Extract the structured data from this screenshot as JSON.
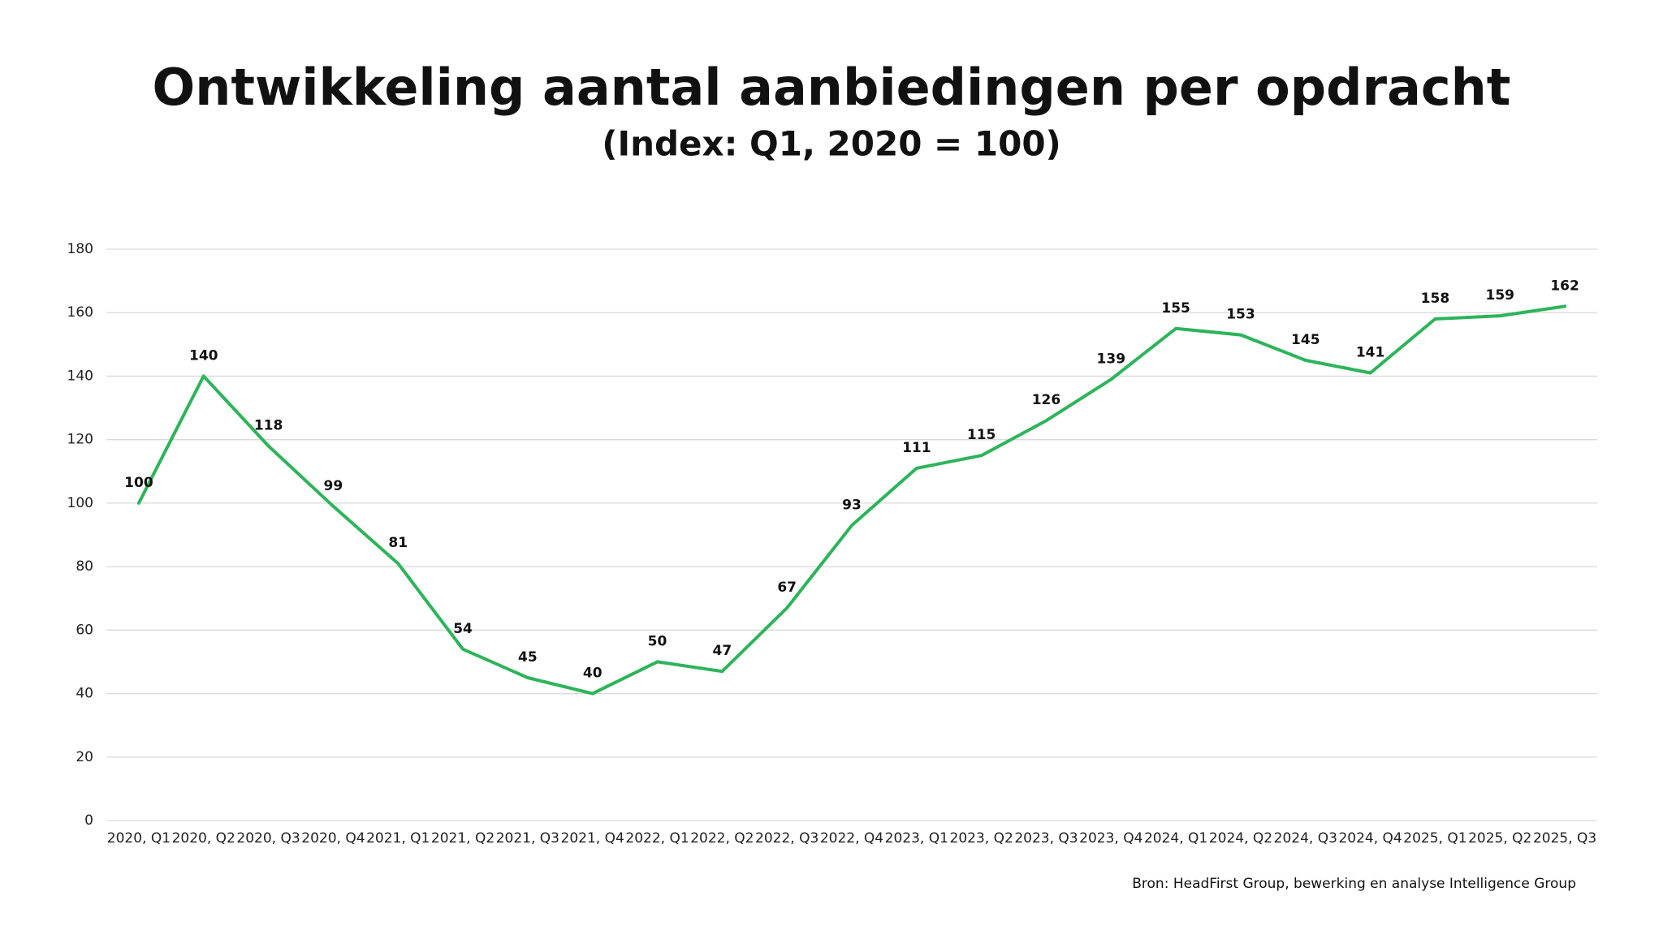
{
  "chart_data": {
    "type": "line",
    "title": "Ontwikkeling aantal aanbiedingen per opdracht",
    "subtitle": "(Index: Q1, 2020 = 100)",
    "source": "Bron: HeadFirst Group, bewerking en analyse Intelligence Group",
    "categories": [
      "2020, Q1",
      "2020, Q2",
      "2020, Q3",
      "2020, Q4",
      "2021, Q1",
      "2021, Q2",
      "2021, Q3",
      "2021, Q4",
      "2022, Q1",
      "2022, Q2",
      "2022, Q3",
      "2022, Q4",
      "2023, Q1",
      "2023, Q2",
      "2023, Q3",
      "2023, Q4",
      "2024, Q1",
      "2024, Q2",
      "2024, Q3",
      "2024, Q4",
      "2025, Q1",
      "2025, Q2",
      "2025, Q3"
    ],
    "values": [
      100,
      140,
      118,
      99,
      81,
      54,
      45,
      40,
      50,
      47,
      67,
      93,
      111,
      115,
      126,
      139,
      155,
      153,
      145,
      141,
      158,
      159,
      162
    ],
    "color": "#2db45a",
    "ylim": [
      0,
      180
    ],
    "yticks": [
      0,
      20,
      40,
      60,
      80,
      100,
      120,
      140,
      160,
      180
    ],
    "grid": true
  }
}
